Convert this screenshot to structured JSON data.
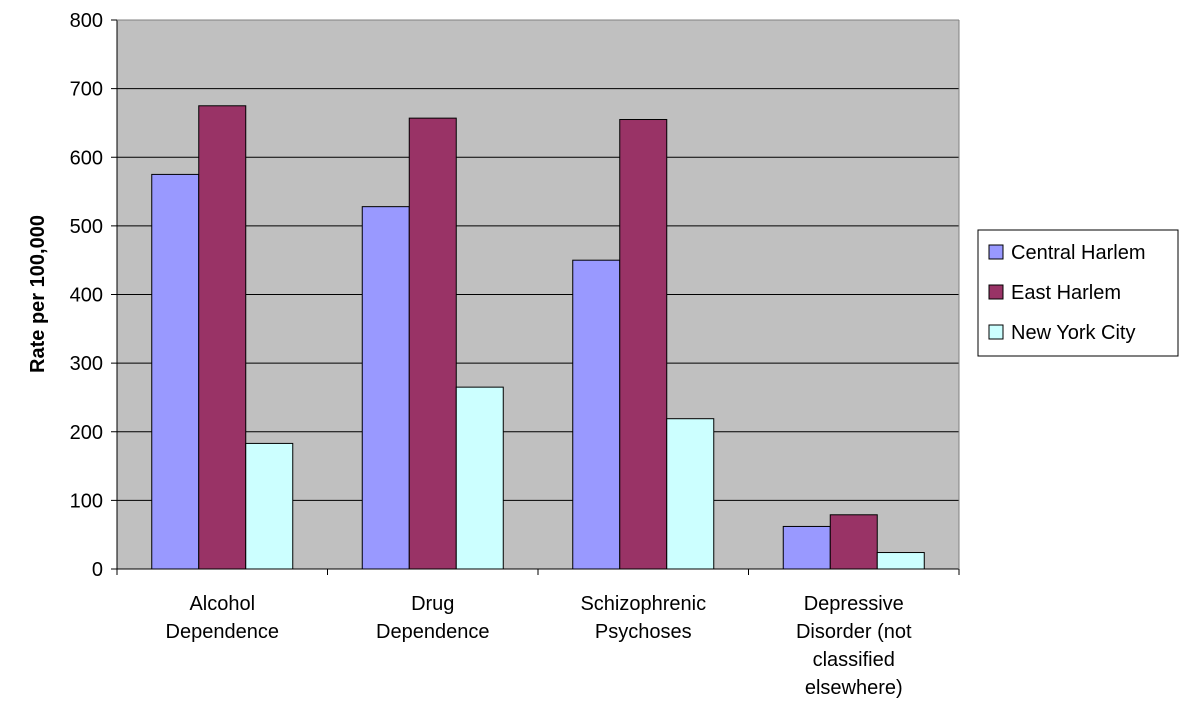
{
  "chart_data": {
    "type": "bar",
    "title": "",
    "xlabel": "",
    "ylabel": "Rate per 100,000",
    "ylim": [
      0,
      800
    ],
    "yticks": [
      0,
      100,
      200,
      300,
      400,
      500,
      600,
      700,
      800
    ],
    "grid": true,
    "legend_position": "right",
    "plot_background": "#c0c0c0",
    "categories": [
      [
        "Alcohol",
        "Dependence"
      ],
      [
        "Drug",
        "Dependence"
      ],
      [
        "Schizophrenic",
        "Psychoses"
      ],
      [
        "Depressive",
        "Disorder (not",
        "classified",
        "elsewhere)"
      ]
    ],
    "series": [
      {
        "name": "Central Harlem",
        "color": "#9999ff",
        "values": [
          575,
          528,
          450,
          62
        ]
      },
      {
        "name": "East Harlem",
        "color": "#993366",
        "values": [
          675,
          657,
          655,
          79
        ]
      },
      {
        "name": "New York City",
        "color": "#ccffff",
        "values": [
          183,
          265,
          219,
          24
        ]
      }
    ]
  }
}
